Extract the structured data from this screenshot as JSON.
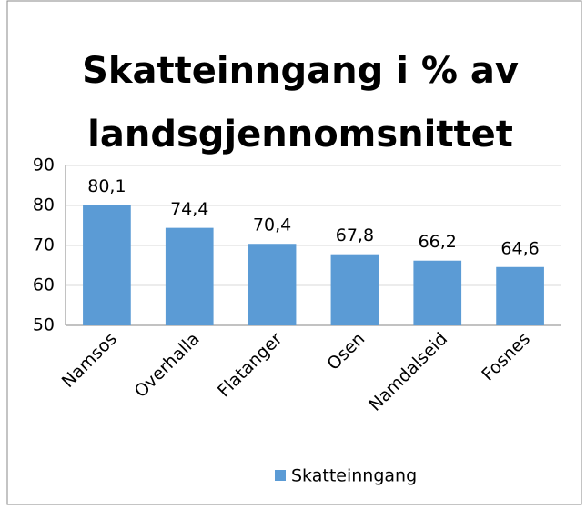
{
  "chart_data": {
    "type": "bar",
    "title": [
      "Skatteinngang i % av",
      "landsgjennomsnittet"
    ],
    "categories": [
      "Namsos",
      "Overhalla",
      "Flatanger",
      "Osen",
      "Namdalseid",
      "Fosnes"
    ],
    "series": [
      {
        "name": "Skatteinngang",
        "color": "#5b9bd5",
        "values": [
          80.1,
          74.4,
          70.4,
          67.8,
          66.2,
          64.6
        ],
        "value_labels": [
          "80,1",
          "74,4",
          "70,4",
          "67,8",
          "66,2",
          "64,6"
        ]
      }
    ],
    "ylim": [
      50,
      90
    ],
    "yticks": [
      50,
      60,
      70,
      80,
      90
    ],
    "grid": true,
    "legend": "bottom"
  }
}
